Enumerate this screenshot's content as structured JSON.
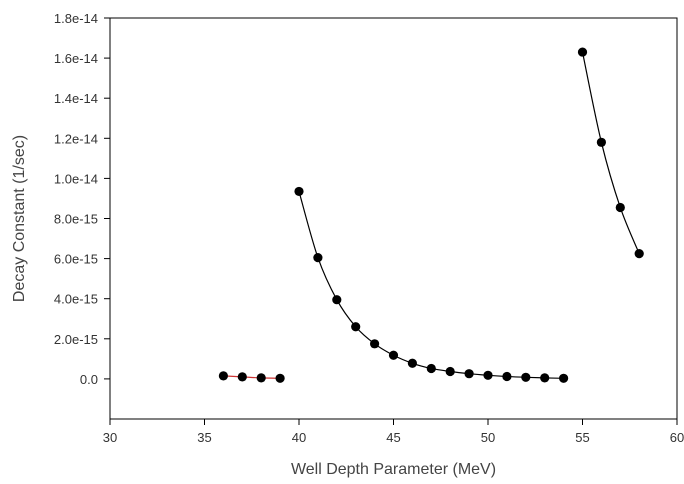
{
  "chart_data": {
    "type": "scatter",
    "xlabel": "Well Depth Parameter (MeV)",
    "ylabel": "Decay Constant (1/sec)",
    "xlim": [
      30,
      60
    ],
    "ylim": [
      -2e-15,
      1.8e-14
    ],
    "x_ticks": [
      30,
      35,
      40,
      45,
      50,
      55,
      60
    ],
    "x_tick_labels": [
      "30",
      "35",
      "40",
      "45",
      "50",
      "55",
      "60"
    ],
    "y_ticks": [
      0,
      2e-15,
      4e-15,
      6e-15,
      8e-15,
      1e-14,
      1.2e-14,
      1.4e-14,
      1.6e-14,
      1.8e-14
    ],
    "y_tick_labels": [
      "0.0",
      "2.0e-15",
      "4.0e-15",
      "6.0e-15",
      "8.0e-15",
      "1.0e-14",
      "1.2e-14",
      "1.4e-14",
      "1.6e-14",
      "1.8e-14"
    ],
    "grid": false,
    "series": [
      {
        "line_color": "#cc3333",
        "marker_color": "#000000",
        "points": [
          [
            36,
            1.5e-16
          ],
          [
            37,
            1e-16
          ],
          [
            38,
            5e-17
          ],
          [
            39,
            3e-17
          ]
        ]
      },
      {
        "line_color": "#000000",
        "marker_color": "#000000",
        "points": [
          [
            40,
            9.35e-15
          ],
          [
            41,
            6.05e-15
          ],
          [
            42,
            3.95e-15
          ],
          [
            43,
            2.6e-15
          ],
          [
            44,
            1.75e-15
          ],
          [
            45,
            1.18e-15
          ],
          [
            46,
            7.8e-16
          ],
          [
            47,
            5.2e-16
          ],
          [
            48,
            3.7e-16
          ],
          [
            49,
            2.6e-16
          ],
          [
            50,
            1.8e-16
          ],
          [
            51,
            1.2e-16
          ],
          [
            52,
            8e-17
          ],
          [
            53,
            5e-17
          ],
          [
            54,
            3e-17
          ]
        ]
      },
      {
        "line_color": "#000000",
        "marker_color": "#000000",
        "points": [
          [
            55,
            1.63e-14
          ],
          [
            56,
            1.18e-14
          ],
          [
            57,
            8.55e-15
          ],
          [
            58,
            6.25e-15
          ]
        ]
      }
    ]
  }
}
